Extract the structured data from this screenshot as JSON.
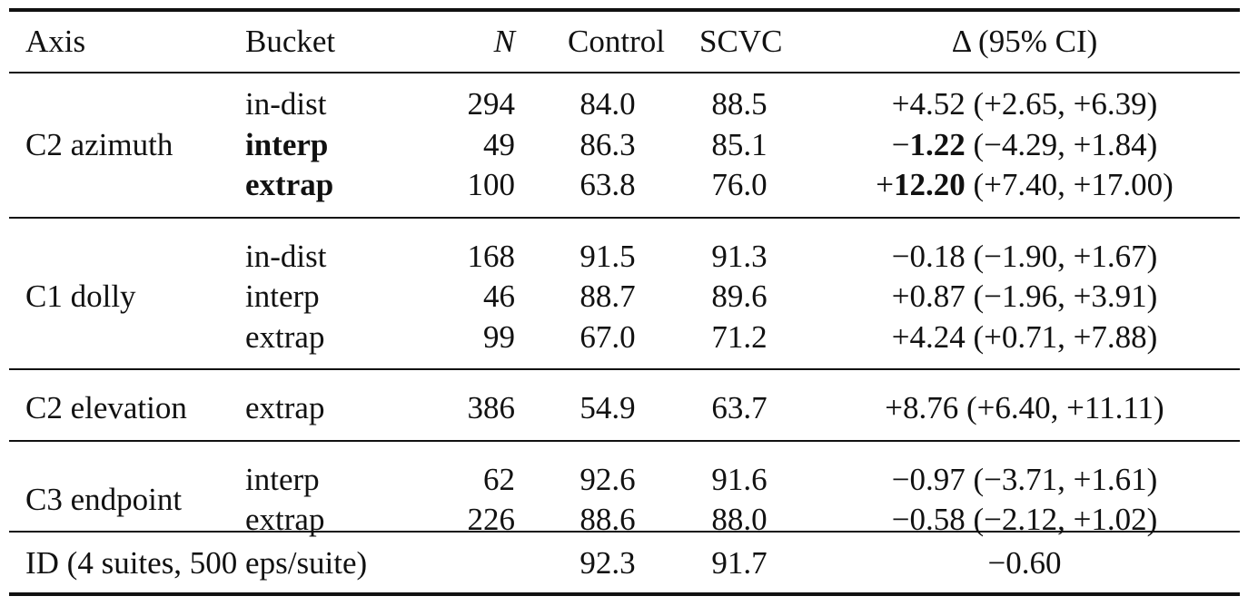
{
  "table": {
    "headers": {
      "axis": "Axis",
      "bucket": "Bucket",
      "n": "N",
      "control": "Control",
      "scvc": "SCVC",
      "delta": "Δ (95% CI)"
    },
    "groups": [
      {
        "axis": "C2 azimuth",
        "rows": [
          {
            "bucket": "in-dist",
            "n": "294",
            "control": "84.0",
            "scvc": "88.5",
            "delta_sign": "+",
            "delta_value": "4.52",
            "delta_ci": " (+2.65, +6.39)",
            "bold": false
          },
          {
            "bucket": "interp",
            "n": "49",
            "control": "86.3",
            "scvc": "85.1",
            "delta_sign": "−",
            "delta_value": "1.22",
            "delta_ci": " (−4.29, +1.84)",
            "bold": true
          },
          {
            "bucket": "extrap",
            "n": "100",
            "control": "63.8",
            "scvc": "76.0",
            "delta_sign": "+",
            "delta_value": "12.20",
            "delta_ci": " (+7.40, +17.00)",
            "bold": true
          }
        ]
      },
      {
        "axis": "C1 dolly",
        "rows": [
          {
            "bucket": "in-dist",
            "n": "168",
            "control": "91.5",
            "scvc": "91.3",
            "delta_sign": "−",
            "delta_value": "0.18",
            "delta_ci": " (−1.90, +1.67)",
            "bold": false
          },
          {
            "bucket": "interp",
            "n": "46",
            "control": "88.7",
            "scvc": "89.6",
            "delta_sign": "+",
            "delta_value": "0.87",
            "delta_ci": " (−1.96, +3.91)",
            "bold": false
          },
          {
            "bucket": "extrap",
            "n": "99",
            "control": "67.0",
            "scvc": "71.2",
            "delta_sign": "+",
            "delta_value": "4.24",
            "delta_ci": " (+0.71, +7.88)",
            "bold": false
          }
        ]
      },
      {
        "axis": "C2 elevation",
        "rows": [
          {
            "bucket": "extrap",
            "n": "386",
            "control": "54.9",
            "scvc": "63.7",
            "delta_sign": "+",
            "delta_value": "8.76",
            "delta_ci": " (+6.40, +11.11)",
            "bold": false
          }
        ]
      },
      {
        "axis": "C3 endpoint",
        "rows": [
          {
            "bucket": "interp",
            "n": "62",
            "control": "92.6",
            "scvc": "91.6",
            "delta_sign": "−",
            "delta_value": "0.97",
            "delta_ci": " (−3.71, +1.61)",
            "bold": false
          },
          {
            "bucket": "extrap",
            "n": "226",
            "control": "88.6",
            "scvc": "88.0",
            "delta_sign": "−",
            "delta_value": "0.58",
            "delta_ci": " (−2.12, +1.02)",
            "bold": false
          }
        ]
      }
    ],
    "footer": {
      "label": "ID (4 suites, 500 eps/suite)",
      "control": "92.3",
      "scvc": "91.7",
      "delta": "−0.60"
    }
  }
}
